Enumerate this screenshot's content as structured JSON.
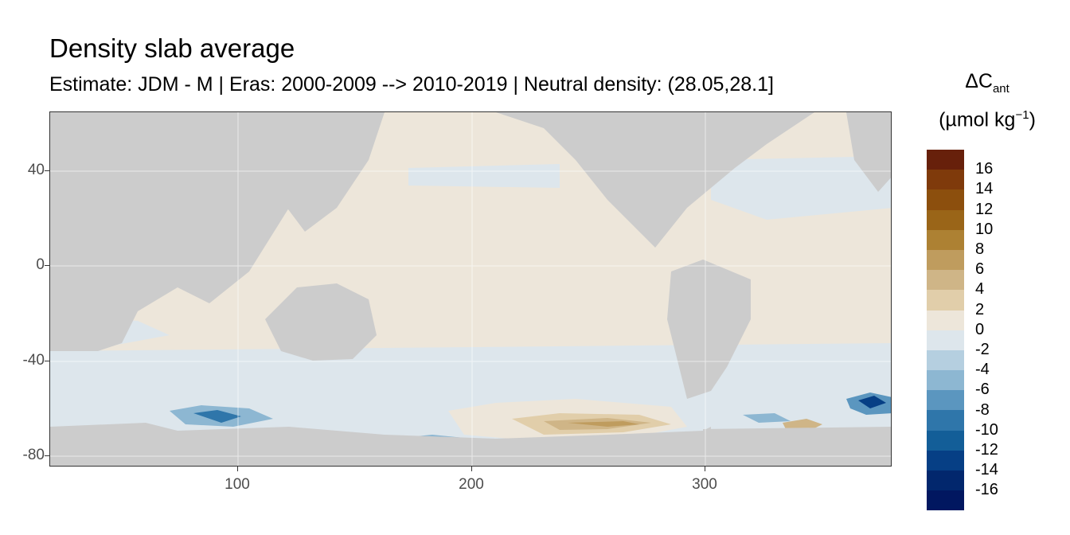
{
  "title": "Density slab average",
  "subtitle": "Estimate: JDM - M | Eras: 2000-2009 --> 2010-2019 | Neutral density: (28.05,28.1]",
  "axes": {
    "x_ticks": [
      {
        "value": 100,
        "label": "100"
      },
      {
        "value": 200,
        "label": "200"
      },
      {
        "value": 300,
        "label": "300"
      }
    ],
    "y_ticks": [
      {
        "value": 40,
        "label": "40"
      },
      {
        "value": 0,
        "label": "0"
      },
      {
        "value": -40,
        "label": "-40"
      },
      {
        "value": -80,
        "label": "-80"
      }
    ]
  },
  "legend": {
    "title_line1": "ΔC",
    "title_sub": "ant",
    "title_line2": "(µmol kg",
    "title_sup": "−1",
    "title_close": ")",
    "labels": [
      "16",
      "14",
      "12",
      "10",
      "8",
      "6",
      "4",
      "2",
      "0",
      "-2",
      "-4",
      "-6",
      "-8",
      "-10",
      "-12",
      "-14",
      "-16"
    ],
    "colors": [
      "#67200b",
      "#7f3a0b",
      "#8c4f0d",
      "#9a6518",
      "#ad8133",
      "#bf9c5e",
      "#cfb587",
      "#e1ceaa",
      "#ede6da",
      "#dde6ec",
      "#b5cfe0",
      "#8db7d2",
      "#5b96bf",
      "#2f76aa",
      "#135e98",
      "#063f85",
      "#02276d",
      "#011760"
    ]
  },
  "colors": {
    "land": "#cccccc",
    "background": "#ffffff",
    "near_zero_positive": "#ede6da",
    "near_zero_negative": "#dde6ec"
  }
}
